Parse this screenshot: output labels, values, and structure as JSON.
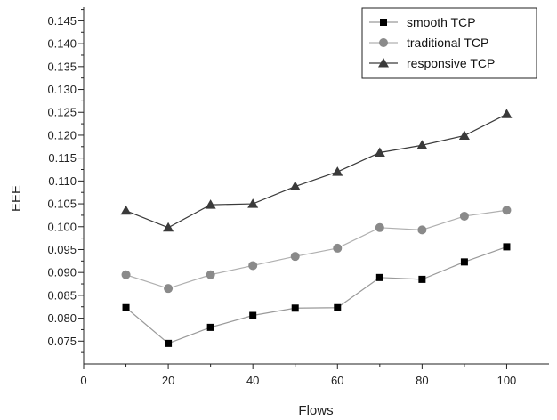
{
  "chart_data": {
    "type": "line",
    "title": "",
    "xlabel": "Flows",
    "ylabel": "EEE",
    "xlim": [
      0,
      110
    ],
    "ylim": [
      0.07,
      0.148
    ],
    "x_ticks": [
      0,
      20,
      40,
      60,
      80,
      100
    ],
    "y_ticks": [
      0.075,
      0.08,
      0.085,
      0.09,
      0.095,
      0.1,
      0.105,
      0.11,
      0.115,
      0.12,
      0.125,
      0.13,
      0.135,
      0.14,
      0.145
    ],
    "x_tick_labels": [
      "0",
      "20",
      "40",
      "60",
      "80",
      "100"
    ],
    "y_tick_labels": [
      "0.075",
      "0.080",
      "0.085",
      "0.090",
      "0.095",
      "0.100",
      "0.105",
      "0.110",
      "0.115",
      "0.120",
      "0.125",
      "0.130",
      "0.135",
      "0.140",
      "0.145"
    ],
    "grid": false,
    "legend_position": "top-right",
    "x": [
      10,
      20,
      30,
      40,
      50,
      60,
      70,
      80,
      90,
      100
    ],
    "series": [
      {
        "name": "smooth TCP",
        "marker": "square",
        "color": "#000000",
        "line_color": "#9a9a9a",
        "values": [
          0.0823,
          0.0745,
          0.078,
          0.0806,
          0.0822,
          0.0823,
          0.0889,
          0.0885,
          0.0923,
          0.0956
        ]
      },
      {
        "name": "traditional TCP",
        "marker": "circle",
        "color": "#8a8a8a",
        "line_color": "#b0b0b0",
        "values": [
          0.0895,
          0.0865,
          0.0895,
          0.0915,
          0.0935,
          0.0953,
          0.0998,
          0.0993,
          0.1023,
          0.1036
        ]
      },
      {
        "name": "responsive TCP",
        "marker": "triangle",
        "color": "#3a3a3a",
        "line_color": "#3a3a3a",
        "values": [
          0.1035,
          0.0998,
          0.1048,
          0.105,
          0.1088,
          0.112,
          0.1162,
          0.1178,
          0.1199,
          0.1246
        ]
      }
    ]
  }
}
